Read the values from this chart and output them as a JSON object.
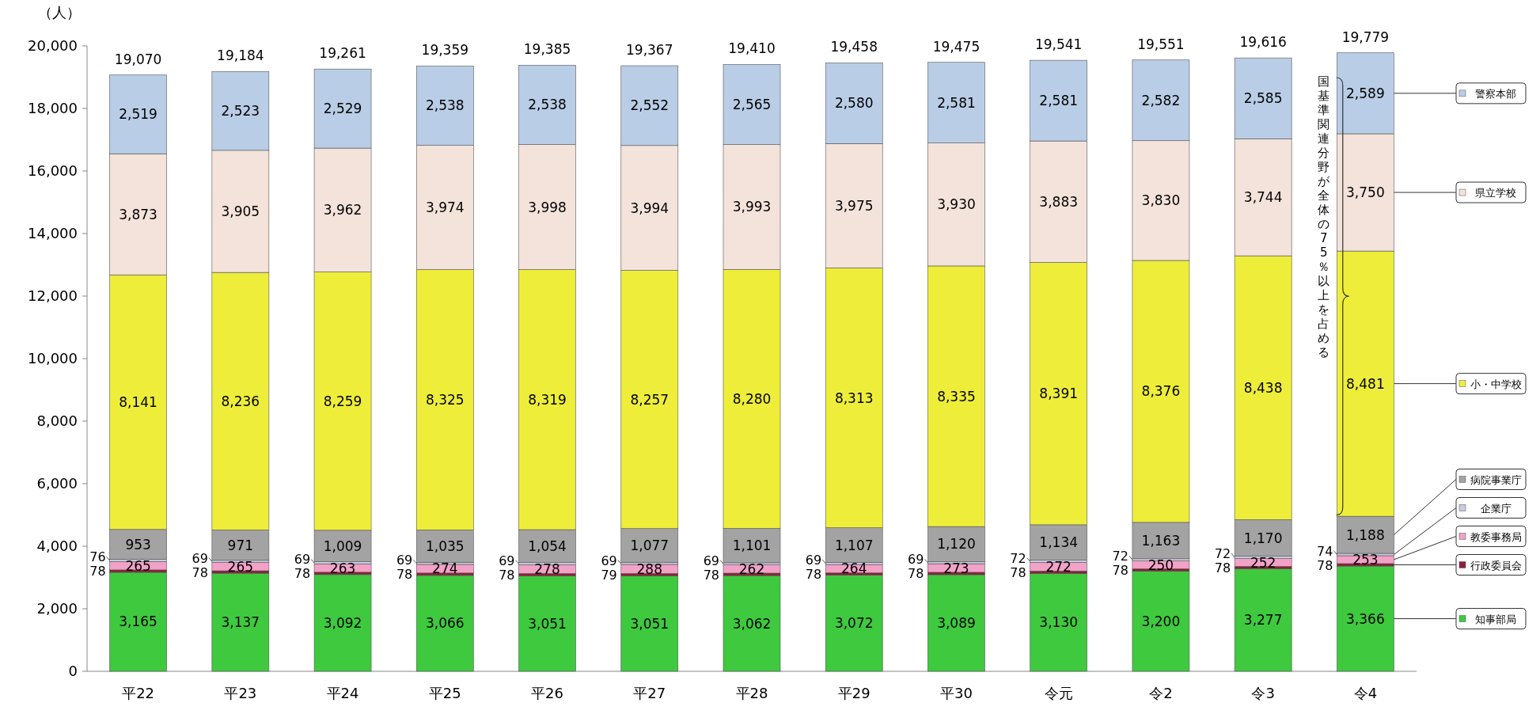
{
  "chart_data": {
    "type": "bar",
    "stacked": true,
    "ylabel": "（人）",
    "categories": [
      "平22",
      "平23",
      "平24",
      "平25",
      "平26",
      "平27",
      "平28",
      "平29",
      "平30",
      "令元",
      "令2",
      "令3",
      "令4"
    ],
    "series": [
      {
        "name": "知事部局",
        "color": "#3ec93e",
        "values": [
          3165,
          3137,
          3092,
          3066,
          3051,
          3051,
          3062,
          3072,
          3089,
          3130,
          3200,
          3277,
          3366
        ]
      },
      {
        "name": "行政委員会",
        "color": "#8e1f3a",
        "values": [
          78,
          78,
          78,
          78,
          78,
          79,
          78,
          78,
          78,
          78,
          78,
          78,
          78
        ]
      },
      {
        "name": "教委事務局",
        "color": "#f2a2c6",
        "values": [
          265,
          265,
          263,
          274,
          278,
          288,
          262,
          264,
          273,
          272,
          250,
          252,
          253
        ]
      },
      {
        "name": "企業庁",
        "color": "#c9cbe0",
        "values": [
          76,
          69,
          69,
          69,
          69,
          69,
          69,
          69,
          69,
          72,
          72,
          72,
          74
        ]
      },
      {
        "name": "病院事業庁",
        "color": "#a3a3a3",
        "values": [
          953,
          971,
          1009,
          1035,
          1054,
          1077,
          1101,
          1107,
          1120,
          1134,
          1163,
          1170,
          1188
        ]
      },
      {
        "name": "小・中学校",
        "color": "#eeee3a",
        "values": [
          8141,
          8236,
          8259,
          8325,
          8319,
          8257,
          8280,
          8313,
          8335,
          8391,
          8376,
          8438,
          8481
        ]
      },
      {
        "name": "県立学校",
        "color": "#f3e3da",
        "values": [
          3873,
          3905,
          3962,
          3974,
          3998,
          3994,
          3993,
          3975,
          3930,
          3883,
          3830,
          3744,
          3750
        ]
      },
      {
        "name": "警察本部",
        "color": "#b9cde6",
        "values": [
          2519,
          2523,
          2529,
          2538,
          2538,
          2552,
          2565,
          2580,
          2581,
          2581,
          2582,
          2585,
          2589
        ]
      }
    ],
    "totals": [
      "19,070",
      "19,184",
      "19,261",
      "19,359",
      "19,385",
      "19,367",
      "19,410",
      "19,458",
      "19,475",
      "19,541",
      "19,551",
      "19,616",
      "19,779"
    ],
    "value_labels": [
      [
        "3,165",
        "3,137",
        "3,092",
        "3,066",
        "3,051",
        "3,051",
        "3,062",
        "3,072",
        "3,089",
        "3,130",
        "3,200",
        "3,277",
        "3,366"
      ],
      [
        "78",
        "78",
        "78",
        "78",
        "78",
        "79",
        "78",
        "78",
        "78",
        "78",
        "78",
        "78",
        "78"
      ],
      [
        "265",
        "265",
        "263",
        "274",
        "278",
        "288",
        "262",
        "264",
        "273",
        "272",
        "250",
        "252",
        "253"
      ],
      [
        "76",
        "69",
        "69",
        "69",
        "69",
        "69",
        "69",
        "69",
        "69",
        "72",
        "72",
        "72",
        "74"
      ],
      [
        "953",
        "971",
        "1,009",
        "1,035",
        "1,054",
        "1,077",
        "1,101",
        "1,107",
        "1,120",
        "1,134",
        "1,163",
        "1,170",
        "1,188"
      ],
      [
        "8,141",
        "8,236",
        "8,259",
        "8,325",
        "8,319",
        "8,257",
        "8,280",
        "8,313",
        "8,335",
        "8,391",
        "8,376",
        "8,438",
        "8,481"
      ],
      [
        "3,873",
        "3,905",
        "3,962",
        "3,974",
        "3,998",
        "3,994",
        "3,993",
        "3,975",
        "3,930",
        "3,883",
        "3,830",
        "3,744",
        "3,750"
      ],
      [
        "2,519",
        "2,523",
        "2,529",
        "2,538",
        "2,538",
        "2,552",
        "2,565",
        "2,580",
        "2,581",
        "2,581",
        "2,582",
        "2,585",
        "2,589"
      ]
    ],
    "ylim": [
      0,
      20000
    ],
    "yticks": [
      {
        "value": 0,
        "label": "0"
      },
      {
        "value": 2000,
        "label": "2,000"
      },
      {
        "value": 4000,
        "label": "4,000"
      },
      {
        "value": 6000,
        "label": "6,000"
      },
      {
        "value": 8000,
        "label": "8,000"
      },
      {
        "value": 10000,
        "label": "10,000"
      },
      {
        "value": 12000,
        "label": "12,000"
      },
      {
        "value": 14000,
        "label": "14,000"
      },
      {
        "value": 16000,
        "label": "16,000"
      },
      {
        "value": 18000,
        "label": "18,000"
      },
      {
        "value": 20000,
        "label": "20,000"
      }
    ],
    "legend": "right",
    "annotations": [
      "国基準関連分野が全体の75％以上を占める"
    ]
  }
}
